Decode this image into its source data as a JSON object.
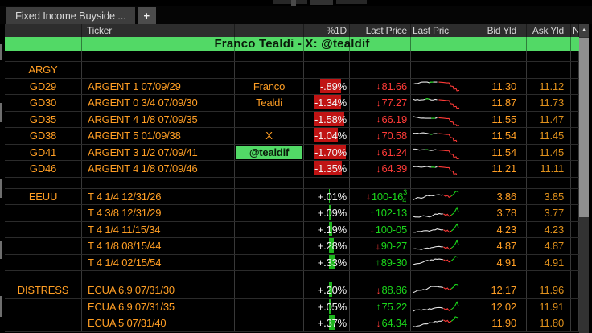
{
  "chrome": {
    "tab_label": "Fixed Income Buyside ...",
    "new_tab_label": "+",
    "scroll_up_icon": "▲"
  },
  "header": {
    "columns": {
      "ticker": "Ticker",
      "pct": "%1D",
      "last_price": "Last Price",
      "chart": "Last Pric",
      "bid": "Bid Yld",
      "ask": "Ask Yld",
      "more": "N"
    }
  },
  "banner": {
    "text": "Franco Tealdi - X: @tealdif"
  },
  "colors": {
    "amber": "#ff9e24",
    "amber_dim": "#e0911c",
    "red": "#ff3b38",
    "red_bar": "#c01414",
    "green": "#1bd71b",
    "green_bar": "#1eb51e",
    "banner_green": "#52d966",
    "highlight_green": "#52d966",
    "header_text": "#d6d6d6",
    "white": "#f2f2f2"
  },
  "rows": [
    {
      "kind": "spacer"
    },
    {
      "kind": "label",
      "ticker": "ARGY"
    },
    {
      "kind": "data",
      "ticker": "GD29",
      "desc": "ARGENT 1 07/09/29",
      "name": "Franco",
      "name_highlight": false,
      "pct": "-.89%",
      "pct_value": -0.89,
      "arrow": "down",
      "price": "81.66",
      "price_frac": "",
      "price_tone": "red",
      "spark": "down",
      "seed": 1,
      "bid": "11.30",
      "ask": "11.12"
    },
    {
      "kind": "data",
      "ticker": "GD30",
      "desc": "ARGENT 0 3/4 07/09/30",
      "name": "Tealdi",
      "name_highlight": false,
      "pct": "-1.34%",
      "pct_value": -1.34,
      "arrow": "down",
      "price": "77.27",
      "price_frac": "",
      "price_tone": "red",
      "spark": "down",
      "seed": 2,
      "bid": "11.87",
      "ask": "11.73"
    },
    {
      "kind": "data",
      "ticker": "GD35",
      "desc": "ARGENT 4 1/8 07/09/35",
      "name": "",
      "name_highlight": false,
      "pct": "-1.58%",
      "pct_value": -1.58,
      "arrow": "down",
      "price": "66.19",
      "price_frac": "",
      "price_tone": "red",
      "spark": "down",
      "seed": 3,
      "bid": "11.55",
      "ask": "11.47"
    },
    {
      "kind": "data",
      "ticker": "GD38",
      "desc": "ARGENT 5 01/09/38",
      "name": "X",
      "name_highlight": false,
      "pct": "-1.04%",
      "pct_value": -1.04,
      "arrow": "down",
      "price": "70.58",
      "price_frac": "",
      "price_tone": "red",
      "spark": "down",
      "seed": 4,
      "bid": "11.54",
      "ask": "11.45"
    },
    {
      "kind": "data",
      "ticker": "GD41",
      "desc": "ARGENT 3 1/2 07/09/41",
      "name": "@tealdif",
      "name_highlight": true,
      "pct": "-1.70%",
      "pct_value": -1.7,
      "arrow": "down",
      "price": "61.24",
      "price_frac": "",
      "price_tone": "red",
      "spark": "down",
      "seed": 5,
      "bid": "11.54",
      "ask": "11.45"
    },
    {
      "kind": "data",
      "ticker": "GD46",
      "desc": "ARGENT 4 1/8 07/09/46",
      "name": "",
      "name_highlight": false,
      "pct": "-1.35%",
      "pct_value": -1.35,
      "arrow": "down",
      "price": "64.39",
      "price_frac": "",
      "price_tone": "red",
      "spark": "down",
      "seed": 6,
      "bid": "11.21",
      "ask": "11.11"
    },
    {
      "kind": "spacer"
    },
    {
      "kind": "data",
      "ticker": "EEUU",
      "desc": "T 4 1/4 12/31/26",
      "name": "",
      "name_highlight": false,
      "pct": "+.01%",
      "pct_value": 0.01,
      "arrow": "down",
      "price": "100-16",
      "price_frac": "3/4",
      "price_tone": "green",
      "spark": "up",
      "seed": 7,
      "bid": "3.86",
      "ask": "3.85"
    },
    {
      "kind": "data",
      "ticker": "",
      "desc": "T 4 3/8 12/31/29",
      "name": "",
      "name_highlight": false,
      "pct": "+.09%",
      "pct_value": 0.09,
      "arrow": "up",
      "price": "102-13",
      "price_frac": "",
      "price_tone": "green",
      "spark": "up",
      "seed": 8,
      "bid": "3.78",
      "ask": "3.77"
    },
    {
      "kind": "data",
      "ticker": "",
      "desc": "T 4 1/4 11/15/34",
      "name": "",
      "name_highlight": false,
      "pct": "+.19%",
      "pct_value": 0.19,
      "arrow": "down",
      "price": "100-05",
      "price_frac": "",
      "price_tone": "green",
      "spark": "up",
      "seed": 9,
      "bid": "4.23",
      "ask": "4.23"
    },
    {
      "kind": "data",
      "ticker": "",
      "desc": "T 4 1/8 08/15/44",
      "name": "",
      "name_highlight": false,
      "pct": "+.28%",
      "pct_value": 0.28,
      "arrow": "down",
      "price": "90-27",
      "price_frac": "",
      "price_tone": "green",
      "spark": "up",
      "seed": 10,
      "bid": "4.87",
      "ask": "4.87"
    },
    {
      "kind": "data",
      "ticker": "",
      "desc": "T 4 1/4 02/15/54",
      "name": "",
      "name_highlight": false,
      "pct": "+.33%",
      "pct_value": 0.33,
      "arrow": "up",
      "price": "89-30",
      "price_frac": "",
      "price_tone": "green",
      "spark": "up",
      "seed": 11,
      "bid": "4.91",
      "ask": "4.91"
    },
    {
      "kind": "spacer"
    },
    {
      "kind": "data",
      "ticker": "DISTRESS",
      "desc": "ECUA 6.9 07/31/30",
      "name": "",
      "name_highlight": false,
      "pct": "+.20%",
      "pct_value": 0.2,
      "arrow": "down",
      "price": "88.86",
      "price_frac": "",
      "price_tone": "green",
      "spark": "up",
      "seed": 12,
      "bid": "12.17",
      "ask": "11.96"
    },
    {
      "kind": "data",
      "ticker": "",
      "desc": "ECUA 6.9 07/31/35",
      "name": "",
      "name_highlight": false,
      "pct": "+.05%",
      "pct_value": 0.05,
      "arrow": "up",
      "price": "75.22",
      "price_frac": "",
      "price_tone": "green",
      "spark": "up",
      "seed": 13,
      "bid": "12.02",
      "ask": "11.91"
    },
    {
      "kind": "data",
      "ticker": "",
      "desc": "ECUA 5 07/31/40",
      "name": "",
      "name_highlight": false,
      "pct": "+.37%",
      "pct_value": 0.37,
      "arrow": "down",
      "price": "64.34",
      "price_frac": "",
      "price_tone": "green",
      "spark": "up",
      "seed": 14,
      "bid": "11.90",
      "ask": "11.80"
    }
  ]
}
